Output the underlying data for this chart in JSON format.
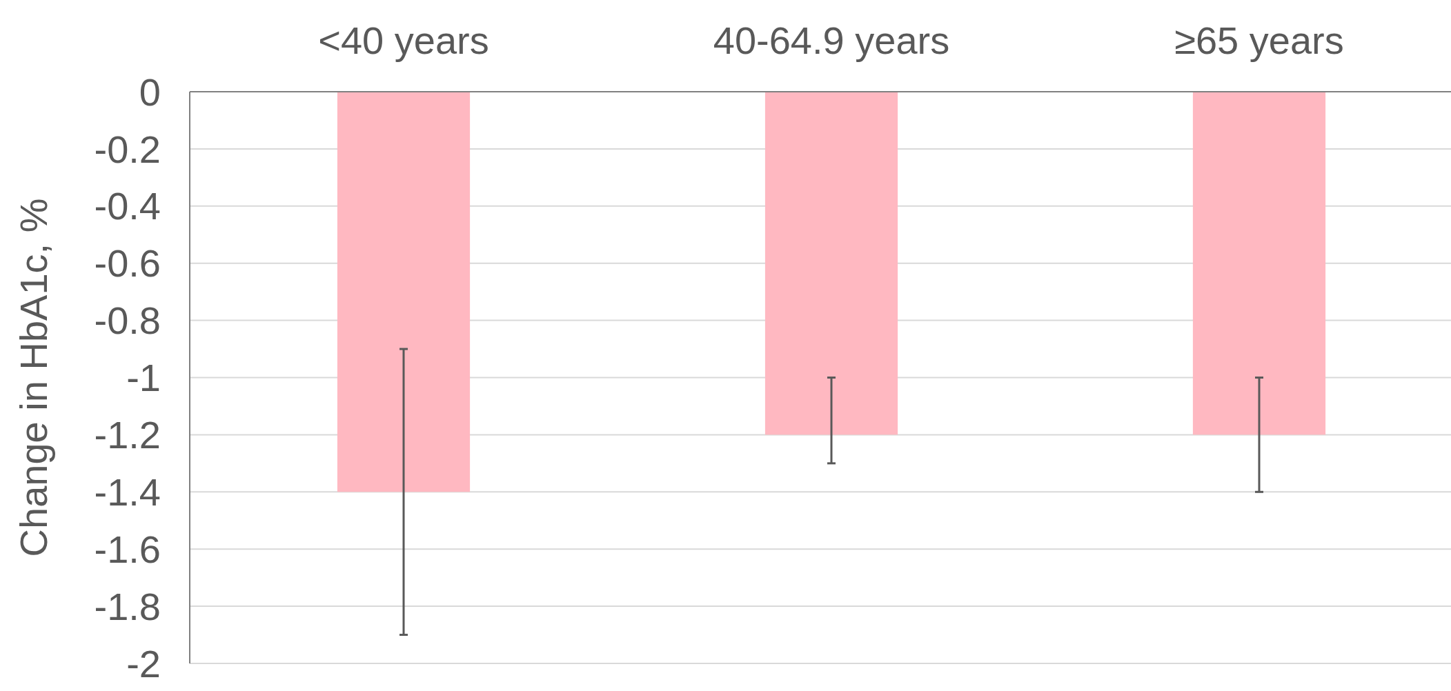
{
  "chart_data": {
    "type": "bar",
    "ylabel": "Change in HbA1c, %",
    "categories": [
      "<40 years",
      "40-64.9 years",
      "≥65 years"
    ],
    "values": [
      -1.4,
      -1.2,
      -1.2
    ],
    "color": "#ffb8c1",
    "errors": [
      [
        -1.9,
        -0.9
      ],
      [
        -1.3,
        -1.0
      ],
      [
        -1.4,
        -1.0
      ]
    ],
    "ylim": [
      -2,
      0
    ],
    "yticks": [
      0,
      -0.2,
      -0.4,
      -0.6,
      -0.8,
      -1,
      -1.2,
      -1.4,
      -1.6,
      -1.8,
      -2
    ],
    "grid": "y"
  }
}
